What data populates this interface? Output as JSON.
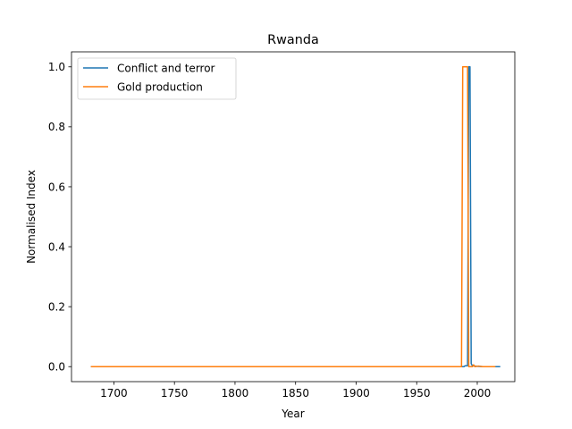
{
  "chart_data": {
    "type": "line",
    "title": "Rwanda",
    "xlabel": "Year",
    "ylabel": "Normalised Index",
    "xlim": [
      1665,
      2031
    ],
    "ylim": [
      -0.05,
      1.05
    ],
    "xticks": [
      1700,
      1750,
      1800,
      1850,
      1900,
      1950,
      2000
    ],
    "yticks": [
      0.0,
      0.2,
      0.4,
      0.6,
      0.8,
      1.0
    ],
    "xtick_labels": [
      "1700",
      "1750",
      "1800",
      "1850",
      "1900",
      "1950",
      "2000"
    ],
    "ytick_labels": [
      "0.0",
      "0.2",
      "0.4",
      "0.6",
      "0.8",
      "1.0"
    ],
    "grid": false,
    "legend": "upper-left",
    "series": [
      {
        "name": "Conflict and terror",
        "color": "#1f77b4",
        "points": [
          [
            1681,
            0
          ],
          [
            1989,
            0
          ],
          [
            1990,
            0.003
          ],
          [
            1992,
            0.003
          ],
          [
            1993,
            1.0
          ],
          [
            1994,
            1.0
          ],
          [
            1995,
            0.01
          ],
          [
            1996,
            0.003
          ],
          [
            2000,
            0.001
          ],
          [
            2005,
            0
          ],
          [
            2019,
            0
          ]
        ]
      },
      {
        "name": "Gold production",
        "color": "#ff7f0e",
        "points": [
          [
            1681,
            0
          ],
          [
            1987,
            0
          ],
          [
            1988,
            1.0
          ],
          [
            1992,
            1.0
          ],
          [
            1993,
            0
          ],
          [
            1996,
            0
          ],
          [
            1997,
            0.006
          ],
          [
            1998,
            0
          ],
          [
            2001,
            0.002
          ],
          [
            2004,
            0
          ],
          [
            2015,
            0
          ]
        ]
      }
    ]
  }
}
